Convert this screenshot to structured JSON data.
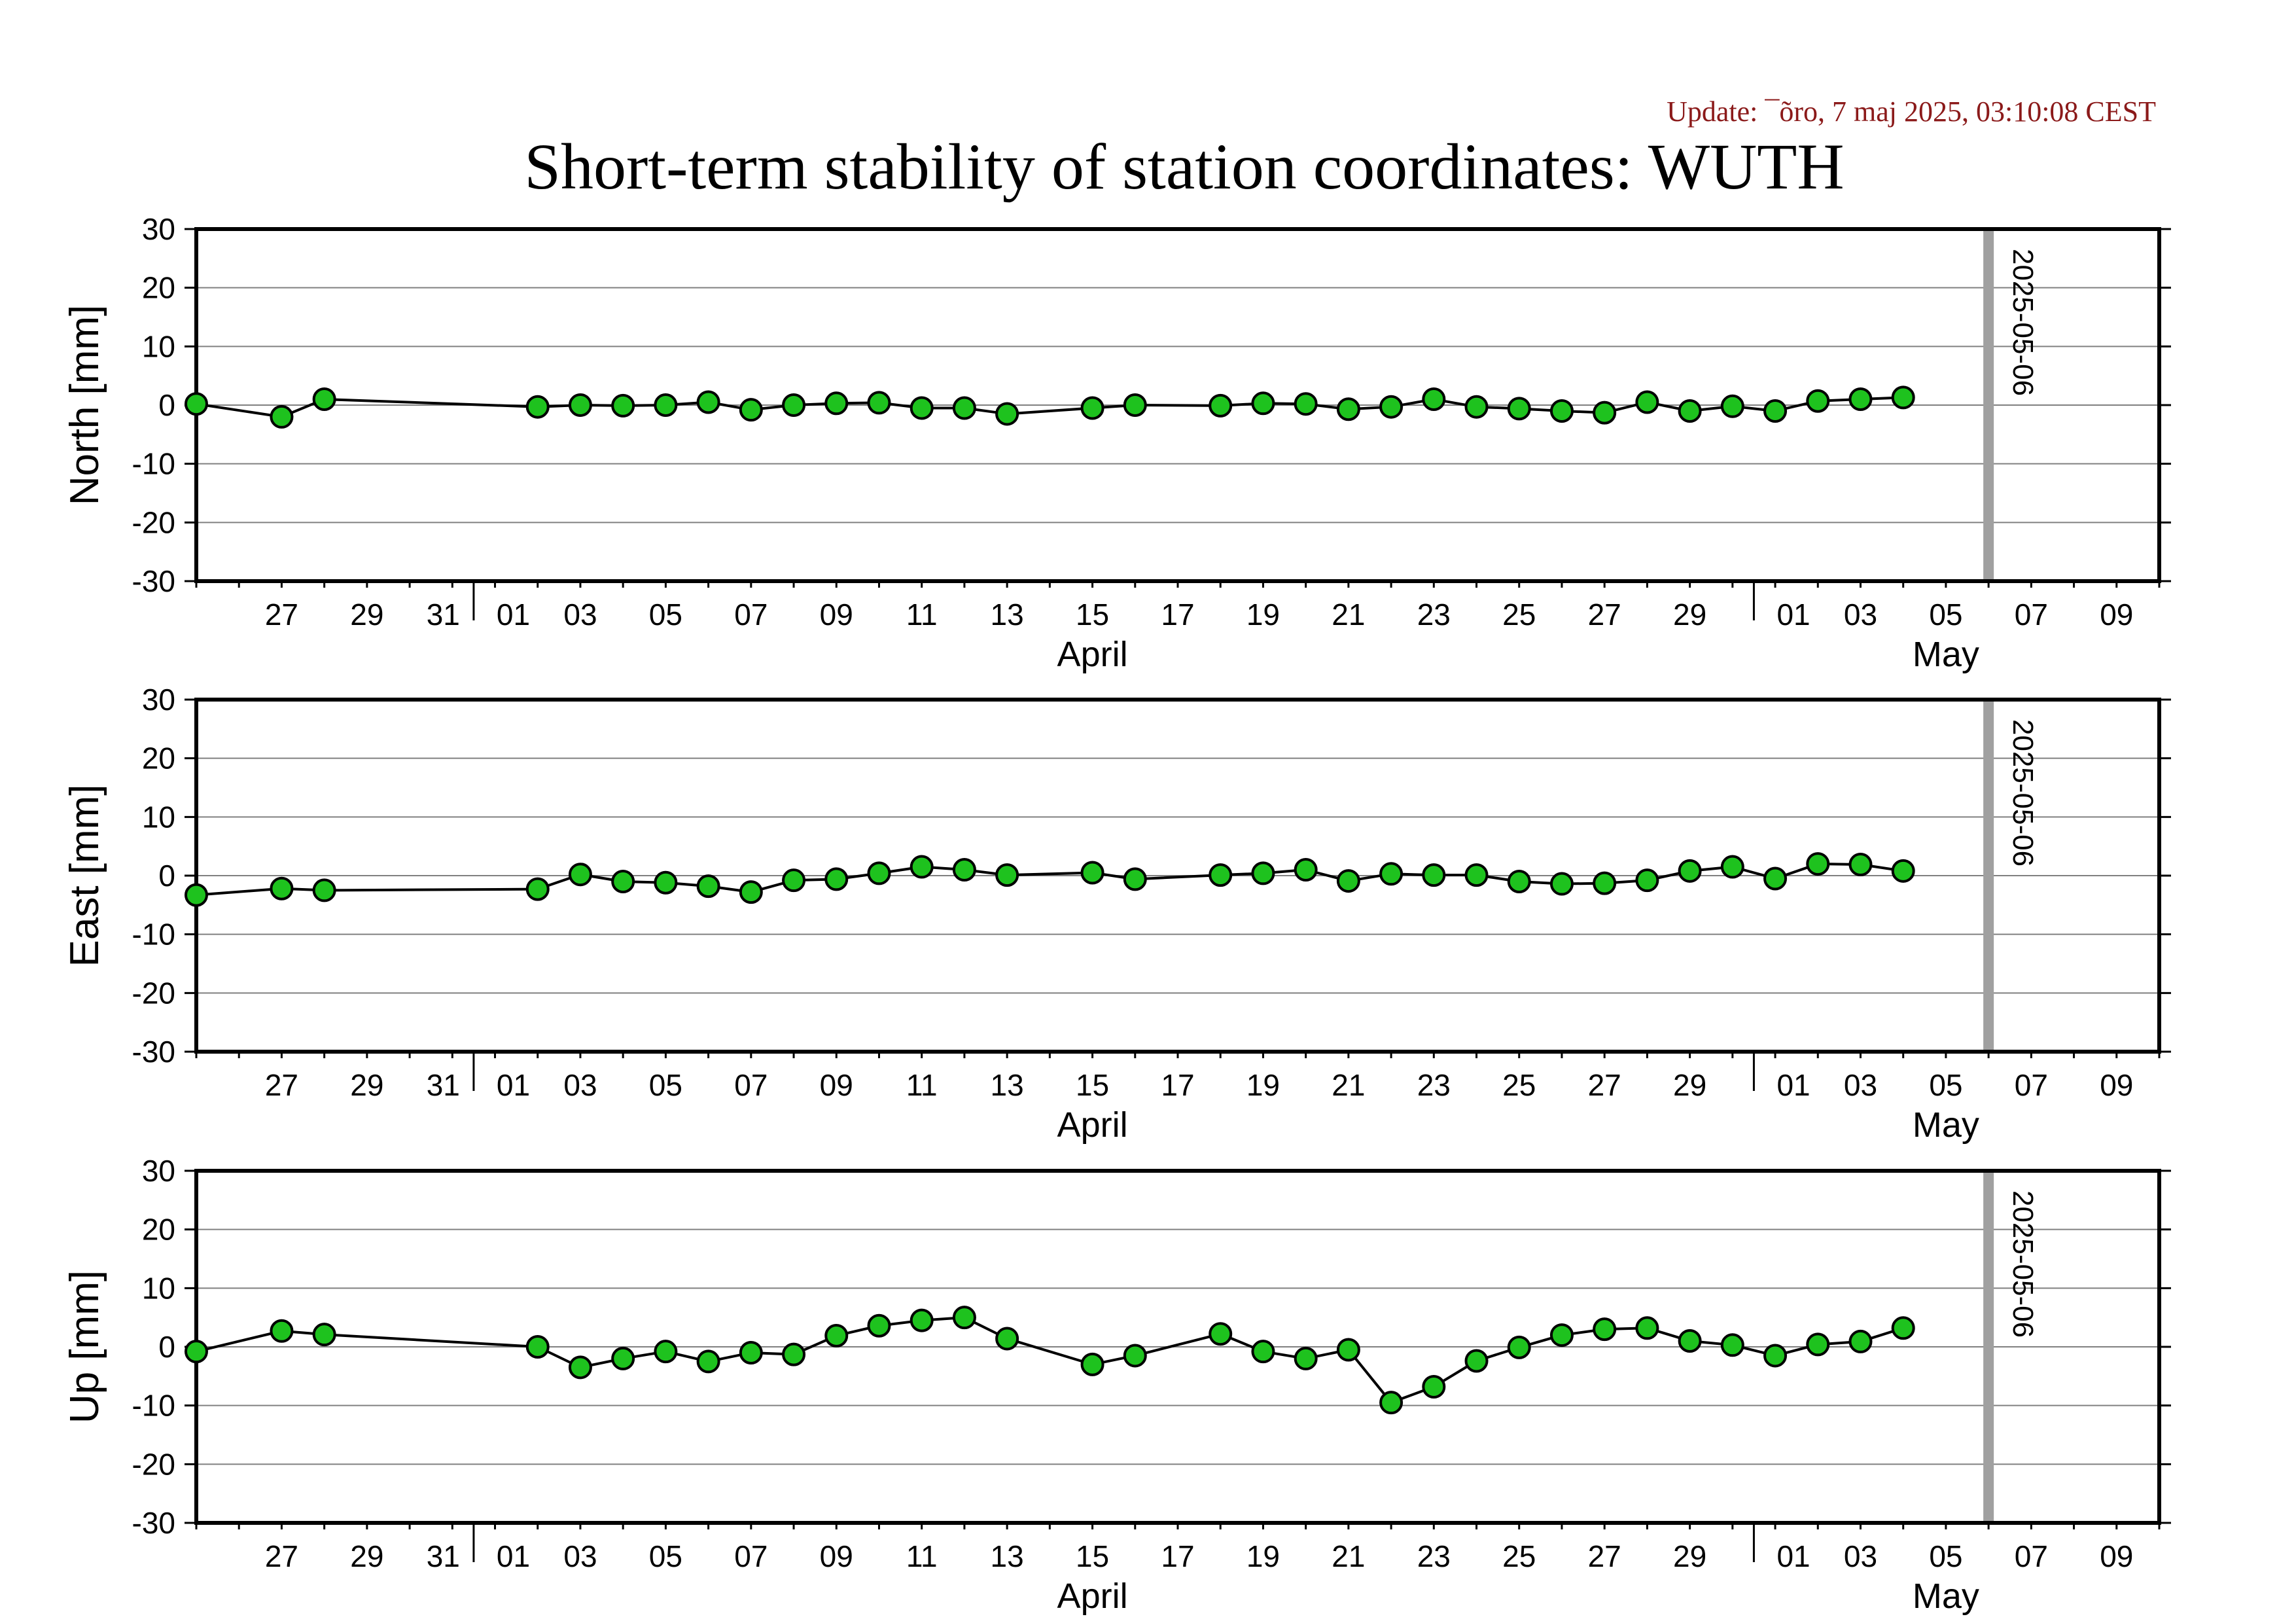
{
  "update_text": "Update: ¯õro, 7 maj 2025, 03:10:08 CEST",
  "title": "Short-term stability of station coordinates: WUTH",
  "colors": {
    "update": "#8b1a1a",
    "marker_fill": "#1ec21e",
    "marker_edge": "#000000",
    "line": "#000000",
    "grid": "#808080",
    "date_marker": "#a0a0a0"
  },
  "chart_data": [
    {
      "type": "line",
      "ylabel": "North [mm]",
      "ylim": [
        -30,
        30
      ],
      "yticks": [
        "30",
        "20",
        "10",
        "0",
        "-10",
        "-20",
        "-30"
      ],
      "xlim": [
        "2025-03-25",
        "2025-05-10"
      ],
      "xticks": [
        {
          "date": "2025-03-27",
          "label": "27"
        },
        {
          "date": "2025-03-29",
          "label": "29"
        },
        {
          "date": "2025-03-31",
          "label": "31"
        },
        {
          "date": "2025-04-01",
          "label": "01"
        },
        {
          "date": "2025-04-03",
          "label": "03"
        },
        {
          "date": "2025-04-05",
          "label": "05"
        },
        {
          "date": "2025-04-07",
          "label": "07"
        },
        {
          "date": "2025-04-09",
          "label": "09"
        },
        {
          "date": "2025-04-11",
          "label": "11"
        },
        {
          "date": "2025-04-13",
          "label": "13"
        },
        {
          "date": "2025-04-15",
          "label": "15"
        },
        {
          "date": "2025-04-17",
          "label": "17"
        },
        {
          "date": "2025-04-19",
          "label": "19"
        },
        {
          "date": "2025-04-21",
          "label": "21"
        },
        {
          "date": "2025-04-23",
          "label": "23"
        },
        {
          "date": "2025-04-25",
          "label": "25"
        },
        {
          "date": "2025-04-27",
          "label": "27"
        },
        {
          "date": "2025-04-29",
          "label": "29"
        },
        {
          "date": "2025-05-01",
          "label": "01"
        },
        {
          "date": "2025-05-03",
          "label": "03"
        },
        {
          "date": "2025-05-05",
          "label": "05"
        },
        {
          "date": "2025-05-07",
          "label": "07"
        },
        {
          "date": "2025-05-09",
          "label": "09"
        }
      ],
      "month_labels": [
        {
          "text": "April",
          "date": "2025-04-15"
        },
        {
          "text": "May",
          "date": "2025-05-05"
        }
      ],
      "month_boundaries": [
        "2025-04-01",
        "2025-05-01"
      ],
      "vline": {
        "date": "2025-05-06",
        "label": "2025-05-06"
      },
      "grid": true,
      "series": [
        {
          "x": [
            "2025-03-25",
            "2025-03-27",
            "2025-03-28",
            "2025-04-02",
            "2025-04-03",
            "2025-04-04",
            "2025-04-05",
            "2025-04-06",
            "2025-04-07",
            "2025-04-08",
            "2025-04-09",
            "2025-04-10",
            "2025-04-11",
            "2025-04-12",
            "2025-04-13",
            "2025-04-15",
            "2025-04-16",
            "2025-04-18",
            "2025-04-19",
            "2025-04-20",
            "2025-04-21",
            "2025-04-22",
            "2025-04-23",
            "2025-04-24",
            "2025-04-25",
            "2025-04-26",
            "2025-04-27",
            "2025-04-28",
            "2025-04-29",
            "2025-04-30",
            "2025-05-01",
            "2025-05-02",
            "2025-05-03",
            "2025-05-04"
          ],
          "y": [
            0.2,
            -2.0,
            1.0,
            -0.3,
            0.0,
            -0.1,
            0.0,
            0.5,
            -0.8,
            0.0,
            0.3,
            0.4,
            -0.5,
            -0.5,
            -1.5,
            -0.5,
            0.0,
            -0.1,
            0.3,
            0.2,
            -0.7,
            -0.3,
            1.0,
            -0.3,
            -0.6,
            -1.0,
            -1.3,
            0.5,
            -1.0,
            -0.2,
            -1.0,
            0.7,
            1.0,
            1.3
          ]
        }
      ]
    },
    {
      "type": "line",
      "ylabel": "East [mm]",
      "ylim": [
        -30,
        30
      ],
      "yticks": [
        "30",
        "20",
        "10",
        "0",
        "-10",
        "-20",
        "-30"
      ],
      "xlim": [
        "2025-03-25",
        "2025-05-10"
      ],
      "xticks": [
        {
          "date": "2025-03-27",
          "label": "27"
        },
        {
          "date": "2025-03-29",
          "label": "29"
        },
        {
          "date": "2025-03-31",
          "label": "31"
        },
        {
          "date": "2025-04-01",
          "label": "01"
        },
        {
          "date": "2025-04-03",
          "label": "03"
        },
        {
          "date": "2025-04-05",
          "label": "05"
        },
        {
          "date": "2025-04-07",
          "label": "07"
        },
        {
          "date": "2025-04-09",
          "label": "09"
        },
        {
          "date": "2025-04-11",
          "label": "11"
        },
        {
          "date": "2025-04-13",
          "label": "13"
        },
        {
          "date": "2025-04-15",
          "label": "15"
        },
        {
          "date": "2025-04-17",
          "label": "17"
        },
        {
          "date": "2025-04-19",
          "label": "19"
        },
        {
          "date": "2025-04-21",
          "label": "21"
        },
        {
          "date": "2025-04-23",
          "label": "23"
        },
        {
          "date": "2025-04-25",
          "label": "25"
        },
        {
          "date": "2025-04-27",
          "label": "27"
        },
        {
          "date": "2025-04-29",
          "label": "29"
        },
        {
          "date": "2025-05-01",
          "label": "01"
        },
        {
          "date": "2025-05-03",
          "label": "03"
        },
        {
          "date": "2025-05-05",
          "label": "05"
        },
        {
          "date": "2025-05-07",
          "label": "07"
        },
        {
          "date": "2025-05-09",
          "label": "09"
        }
      ],
      "month_labels": [
        {
          "text": "April",
          "date": "2025-04-15"
        },
        {
          "text": "May",
          "date": "2025-05-05"
        }
      ],
      "month_boundaries": [
        "2025-04-01",
        "2025-05-01"
      ],
      "vline": {
        "date": "2025-05-06",
        "label": "2025-05-06"
      },
      "grid": true,
      "series": [
        {
          "x": [
            "2025-03-25",
            "2025-03-27",
            "2025-03-28",
            "2025-04-02",
            "2025-04-03",
            "2025-04-04",
            "2025-04-05",
            "2025-04-06",
            "2025-04-07",
            "2025-04-08",
            "2025-04-09",
            "2025-04-10",
            "2025-04-11",
            "2025-04-12",
            "2025-04-13",
            "2025-04-15",
            "2025-04-16",
            "2025-04-18",
            "2025-04-19",
            "2025-04-20",
            "2025-04-21",
            "2025-04-22",
            "2025-04-23",
            "2025-04-24",
            "2025-04-25",
            "2025-04-26",
            "2025-04-27",
            "2025-04-28",
            "2025-04-29",
            "2025-04-30",
            "2025-05-01",
            "2025-05-02",
            "2025-05-03",
            "2025-05-04"
          ],
          "y": [
            -3.3,
            -2.2,
            -2.5,
            -2.3,
            0.2,
            -1.0,
            -1.2,
            -1.8,
            -2.8,
            -0.8,
            -0.6,
            0.4,
            1.5,
            1.0,
            0.1,
            0.5,
            -0.6,
            0.1,
            0.4,
            1.0,
            -0.9,
            0.3,
            0.1,
            0.1,
            -1.0,
            -1.4,
            -1.3,
            -0.8,
            0.8,
            1.5,
            -0.5,
            2.0,
            1.9,
            0.8
          ]
        }
      ]
    },
    {
      "type": "line",
      "ylabel": "Up [mm]",
      "ylim": [
        -30,
        30
      ],
      "yticks": [
        "30",
        "20",
        "10",
        "0",
        "-10",
        "-20",
        "-30"
      ],
      "xlim": [
        "2025-03-25",
        "2025-05-10"
      ],
      "xticks": [
        {
          "date": "2025-03-27",
          "label": "27"
        },
        {
          "date": "2025-03-29",
          "label": "29"
        },
        {
          "date": "2025-03-31",
          "label": "31"
        },
        {
          "date": "2025-04-01",
          "label": "01"
        },
        {
          "date": "2025-04-03",
          "label": "03"
        },
        {
          "date": "2025-04-05",
          "label": "05"
        },
        {
          "date": "2025-04-07",
          "label": "07"
        },
        {
          "date": "2025-04-09",
          "label": "09"
        },
        {
          "date": "2025-04-11",
          "label": "11"
        },
        {
          "date": "2025-04-13",
          "label": "13"
        },
        {
          "date": "2025-04-15",
          "label": "15"
        },
        {
          "date": "2025-04-17",
          "label": "17"
        },
        {
          "date": "2025-04-19",
          "label": "19"
        },
        {
          "date": "2025-04-21",
          "label": "21"
        },
        {
          "date": "2025-04-23",
          "label": "23"
        },
        {
          "date": "2025-04-25",
          "label": "25"
        },
        {
          "date": "2025-04-27",
          "label": "27"
        },
        {
          "date": "2025-04-29",
          "label": "29"
        },
        {
          "date": "2025-05-01",
          "label": "01"
        },
        {
          "date": "2025-05-03",
          "label": "03"
        },
        {
          "date": "2025-05-05",
          "label": "05"
        },
        {
          "date": "2025-05-07",
          "label": "07"
        },
        {
          "date": "2025-05-09",
          "label": "09"
        }
      ],
      "month_labels": [
        {
          "text": "April",
          "date": "2025-04-15"
        },
        {
          "text": "May",
          "date": "2025-05-05"
        }
      ],
      "month_boundaries": [
        "2025-04-01",
        "2025-05-01"
      ],
      "vline": {
        "date": "2025-05-06",
        "label": "2025-05-06"
      },
      "grid": true,
      "series": [
        {
          "x": [
            "2025-03-25",
            "2025-03-27",
            "2025-03-28",
            "2025-04-02",
            "2025-04-03",
            "2025-04-04",
            "2025-04-05",
            "2025-04-06",
            "2025-04-07",
            "2025-04-08",
            "2025-04-09",
            "2025-04-10",
            "2025-04-11",
            "2025-04-12",
            "2025-04-13",
            "2025-04-15",
            "2025-04-16",
            "2025-04-18",
            "2025-04-19",
            "2025-04-20",
            "2025-04-21",
            "2025-04-22",
            "2025-04-23",
            "2025-04-24",
            "2025-04-25",
            "2025-04-26",
            "2025-04-27",
            "2025-04-28",
            "2025-04-29",
            "2025-04-30",
            "2025-05-01",
            "2025-05-02",
            "2025-05-03",
            "2025-05-04"
          ],
          "y": [
            -0.8,
            2.7,
            2.1,
            0.0,
            -3.5,
            -2.0,
            -0.8,
            -2.5,
            -1.0,
            -1.3,
            1.9,
            3.6,
            4.5,
            5.0,
            1.4,
            -3.0,
            -1.5,
            2.2,
            -0.8,
            -2.0,
            -0.5,
            -9.5,
            -6.8,
            -2.4,
            -0.1,
            2.0,
            3.0,
            3.2,
            1.0,
            0.3,
            -1.5,
            0.4,
            0.9,
            3.2
          ]
        }
      ]
    }
  ]
}
